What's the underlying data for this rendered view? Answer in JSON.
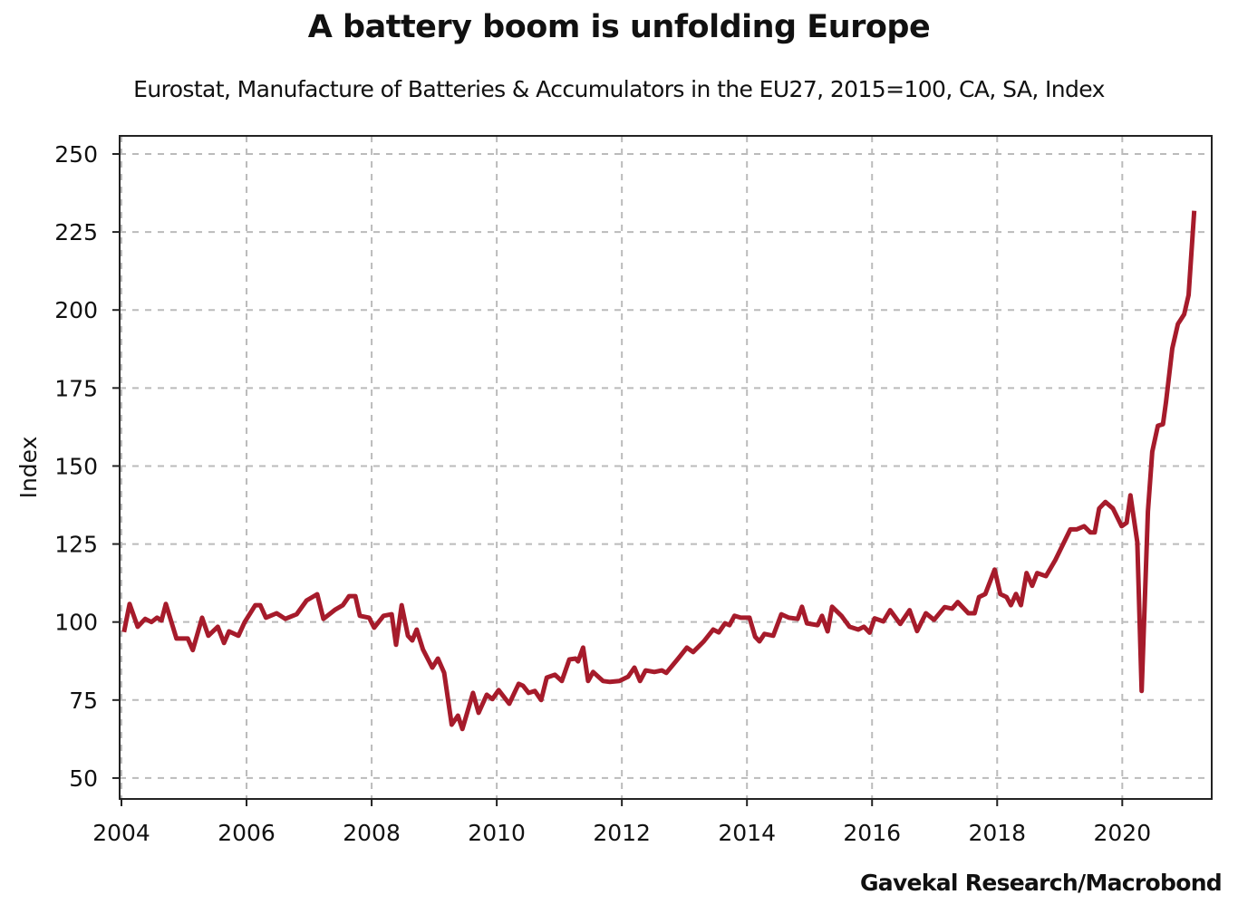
{
  "chart_data": {
    "type": "line",
    "title": "A battery boom is unfolding Europe",
    "subtitle": "Eurostat, Manufacture of Batteries & Accumulators in the EU27, 2015=100, CA, SA, Index",
    "xlabel": "",
    "ylabel": "Index",
    "source": "Gavekal Research/Macrobond",
    "xlim": [
      2004,
      2021.43
    ],
    "ylim": [
      43.3,
      255.8
    ],
    "x_ticks": [
      "2004",
      "2006",
      "2008",
      "2010",
      "2012",
      "2014",
      "2016",
      "2018",
      "2020"
    ],
    "y_ticks": [
      "50",
      "75",
      "100",
      "125",
      "150",
      "175",
      "200",
      "225",
      "250"
    ],
    "grid": true,
    "line_color": "#a61b2b",
    "series": [
      {
        "points": [
          [
            2004.04,
            96.8
          ],
          [
            2004.13,
            105.8
          ],
          [
            2004.26,
            98.5
          ],
          [
            2004.38,
            101
          ],
          [
            2004.48,
            100
          ],
          [
            2004.57,
            101.4
          ],
          [
            2004.64,
            100.5
          ],
          [
            2004.71,
            105.8
          ],
          [
            2004.88,
            94.7
          ],
          [
            2005.06,
            94.7
          ],
          [
            2005.14,
            91
          ],
          [
            2005.29,
            101.4
          ],
          [
            2005.39,
            95.6
          ],
          [
            2005.54,
            98.5
          ],
          [
            2005.64,
            93.3
          ],
          [
            2005.72,
            97
          ],
          [
            2005.87,
            95.6
          ],
          [
            2005.97,
            100
          ],
          [
            2006.14,
            105.4
          ],
          [
            2006.22,
            105.4
          ],
          [
            2006.31,
            101.4
          ],
          [
            2006.48,
            102.8
          ],
          [
            2006.62,
            101
          ],
          [
            2006.8,
            102.5
          ],
          [
            2006.96,
            106.9
          ],
          [
            2007.13,
            108.9
          ],
          [
            2007.23,
            101
          ],
          [
            2007.42,
            104
          ],
          [
            2007.54,
            105.4
          ],
          [
            2007.64,
            108.3
          ],
          [
            2007.74,
            108.3
          ],
          [
            2007.81,
            102
          ],
          [
            2007.96,
            101.4
          ],
          [
            2008.04,
            98.2
          ],
          [
            2008.19,
            102
          ],
          [
            2008.32,
            102.5
          ],
          [
            2008.39,
            92.7
          ],
          [
            2008.48,
            105.4
          ],
          [
            2008.58,
            95.6
          ],
          [
            2008.65,
            94.1
          ],
          [
            2008.72,
            97.6
          ],
          [
            2008.82,
            91.2
          ],
          [
            2008.97,
            85.4
          ],
          [
            2009.06,
            88.3
          ],
          [
            2009.16,
            83.7
          ],
          [
            2009.28,
            67.1
          ],
          [
            2009.38,
            70
          ],
          [
            2009.45,
            65.7
          ],
          [
            2009.62,
            77.3
          ],
          [
            2009.71,
            70.9
          ],
          [
            2009.84,
            76.7
          ],
          [
            2009.93,
            75.3
          ],
          [
            2010.03,
            78.2
          ],
          [
            2010.2,
            73.8
          ],
          [
            2010.35,
            80.2
          ],
          [
            2010.42,
            79.6
          ],
          [
            2010.51,
            77.3
          ],
          [
            2010.61,
            77.9
          ],
          [
            2010.71,
            75
          ],
          [
            2010.8,
            82.2
          ],
          [
            2010.93,
            83.1
          ],
          [
            2011.04,
            81.1
          ],
          [
            2011.16,
            88
          ],
          [
            2011.26,
            88.3
          ],
          [
            2011.3,
            87.4
          ],
          [
            2011.38,
            91.8
          ],
          [
            2011.46,
            81.1
          ],
          [
            2011.54,
            84
          ],
          [
            2011.7,
            81.1
          ],
          [
            2011.81,
            80.8
          ],
          [
            2011.96,
            81.1
          ],
          [
            2012.1,
            82.5
          ],
          [
            2012.2,
            85.4
          ],
          [
            2012.29,
            81.1
          ],
          [
            2012.38,
            84.5
          ],
          [
            2012.52,
            84
          ],
          [
            2012.64,
            84.5
          ],
          [
            2012.71,
            83.7
          ],
          [
            2012.9,
            88.3
          ],
          [
            2013.04,
            91.8
          ],
          [
            2013.14,
            90.4
          ],
          [
            2013.31,
            93.8
          ],
          [
            2013.46,
            97.6
          ],
          [
            2013.55,
            96.7
          ],
          [
            2013.65,
            99.6
          ],
          [
            2013.72,
            99
          ],
          [
            2013.8,
            102
          ],
          [
            2013.9,
            101.4
          ],
          [
            2014.04,
            101.4
          ],
          [
            2014.13,
            95.3
          ],
          [
            2014.2,
            93.8
          ],
          [
            2014.28,
            96.2
          ],
          [
            2014.42,
            95.6
          ],
          [
            2014.55,
            102.5
          ],
          [
            2014.67,
            101.4
          ],
          [
            2014.81,
            101
          ],
          [
            2014.88,
            104.9
          ],
          [
            2014.96,
            99.6
          ],
          [
            2015.13,
            99
          ],
          [
            2015.2,
            102
          ],
          [
            2015.29,
            97
          ],
          [
            2015.36,
            104.9
          ],
          [
            2015.51,
            102
          ],
          [
            2015.64,
            98.5
          ],
          [
            2015.78,
            97.6
          ],
          [
            2015.87,
            98.5
          ],
          [
            2015.96,
            96.6
          ],
          [
            2016.04,
            101.2
          ],
          [
            2016.18,
            100.2
          ],
          [
            2016.29,
            103.8
          ],
          [
            2016.45,
            99.4
          ],
          [
            2016.6,
            103.8
          ],
          [
            2016.72,
            97.1
          ],
          [
            2016.86,
            102.8
          ],
          [
            2016.99,
            100.7
          ],
          [
            2017.16,
            104.8
          ],
          [
            2017.28,
            104.3
          ],
          [
            2017.37,
            106.4
          ],
          [
            2017.54,
            102.8
          ],
          [
            2017.64,
            102.8
          ],
          [
            2017.71,
            108
          ],
          [
            2017.81,
            109
          ],
          [
            2017.96,
            116.8
          ],
          [
            2018.05,
            109
          ],
          [
            2018.15,
            108
          ],
          [
            2018.22,
            105.4
          ],
          [
            2018.3,
            109
          ],
          [
            2018.38,
            105.4
          ],
          [
            2018.47,
            115.7
          ],
          [
            2018.56,
            111.6
          ],
          [
            2018.64,
            115.7
          ],
          [
            2018.78,
            114.7
          ],
          [
            2018.93,
            119.9
          ],
          [
            2019.17,
            129.7
          ],
          [
            2019.27,
            129.7
          ],
          [
            2019.39,
            130.7
          ],
          [
            2019.49,
            128.7
          ],
          [
            2019.56,
            128.7
          ],
          [
            2019.63,
            136.4
          ],
          [
            2019.73,
            138.5
          ],
          [
            2019.85,
            136.4
          ],
          [
            2019.99,
            130.7
          ],
          [
            2020.07,
            131.8
          ],
          [
            2020.13,
            140.6
          ],
          [
            2020.24,
            125.6
          ],
          [
            2020.31,
            77.9
          ],
          [
            2020.41,
            135.4
          ],
          [
            2020.48,
            154.6
          ],
          [
            2020.57,
            162.9
          ],
          [
            2020.65,
            163.4
          ],
          [
            2020.7,
            170.6
          ],
          [
            2020.8,
            187.7
          ],
          [
            2020.89,
            195.5
          ],
          [
            2020.99,
            198.6
          ],
          [
            2021.06,
            204.8
          ],
          [
            2021.15,
            231.8
          ]
        ]
      }
    ]
  }
}
